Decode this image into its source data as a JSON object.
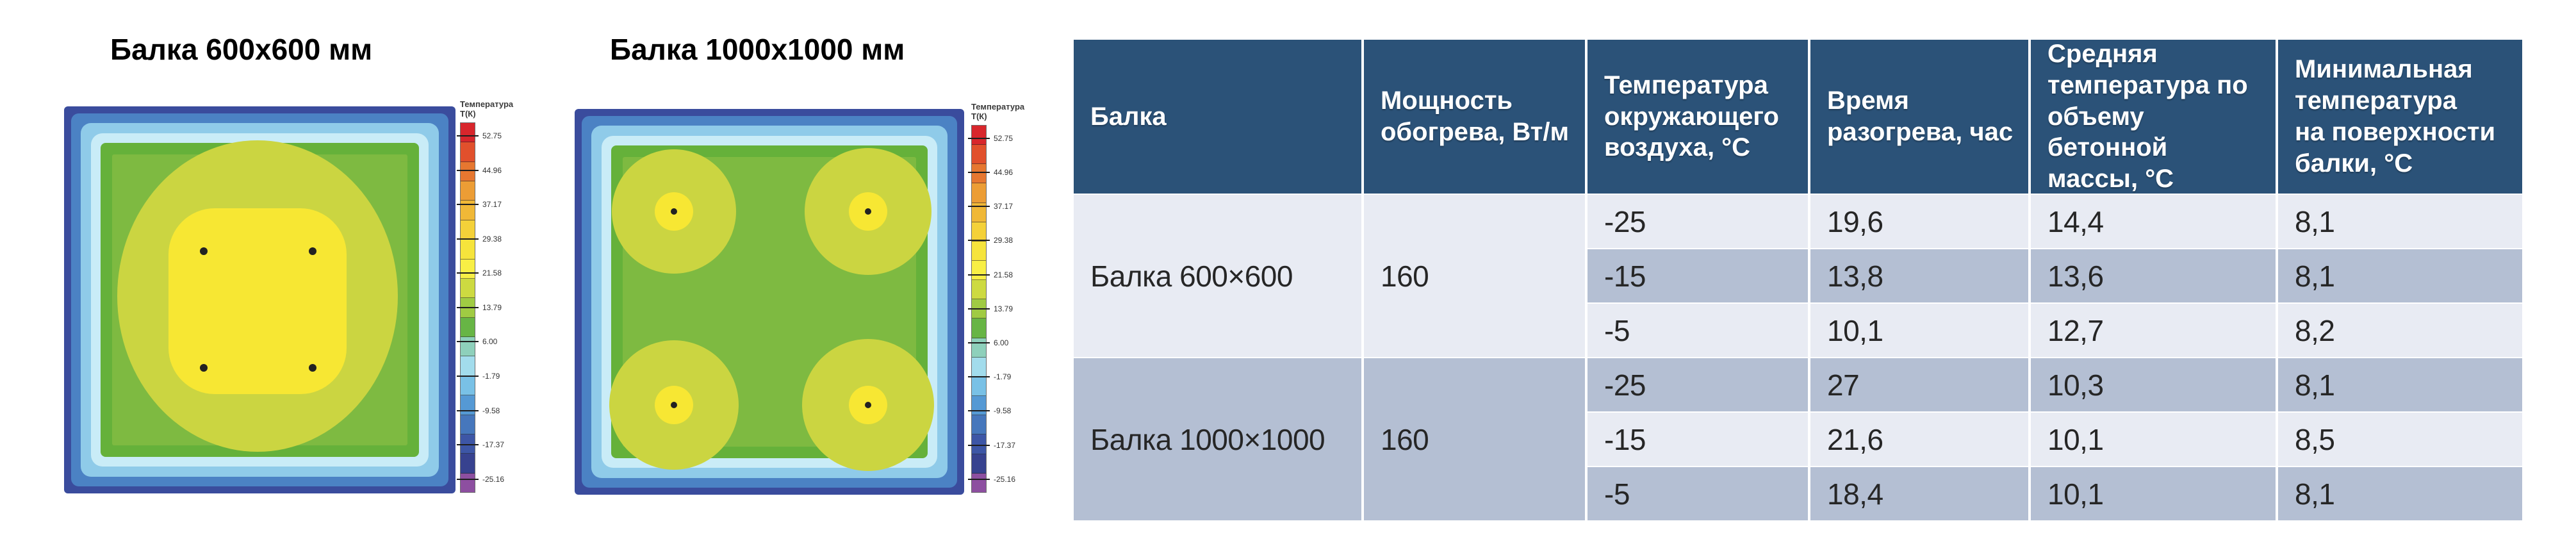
{
  "figures": [
    {
      "title": "Балка 600х600 мм"
    },
    {
      "title": "Балка 1000х1000 мм"
    }
  ],
  "colorbar": {
    "title_line1": "Температура",
    "title_line2": "Т(К)",
    "band_colors": [
      "#d8262c",
      "#e1502c",
      "#e67730",
      "#ec9d35",
      "#f0b837",
      "#f4d139",
      "#f6e43c",
      "#f8ef45",
      "#cdda41",
      "#a0cb43",
      "#67b545",
      "#8ed0bb",
      "#a2dcec",
      "#79c1e6",
      "#5599d4",
      "#4677bc",
      "#3d56a6",
      "#37428f",
      "#8d4fa0"
    ],
    "ticks": [
      "52.75",
      "44.96",
      "37.17",
      "29.38",
      "21.58",
      "13.79",
      "6.00",
      "-1.79",
      "-9.58",
      "-17.37",
      "-25.16"
    ]
  },
  "colors": {
    "header_bg": "#2b5278",
    "header_text": "#ffffff",
    "row_light": "#e8ebf3",
    "row_dark": "#b4bfd3",
    "body_text": "#262626",
    "plot_rings_outer_to_inner": [
      "#3a4c9d",
      "#4b82c4",
      "#8fcbe9",
      "#c9ecf7",
      "#65b13a",
      "#7eba41"
    ],
    "plot_blob_olive": "#cbd541",
    "plot_core_yellow": "#f7e733",
    "heater_dot": "#222222"
  },
  "table": {
    "columns": [
      "Балка",
      "Мощность\nобогрева, Вт/м",
      "Температура\nокружающего\nвоздуха, °С",
      "Время\nразогрева, час",
      "Средняя\nтемпература по\nобъему бетонной\nмассы, °С",
      "Минимальная\nтемпература\nна поверхности\nбалки, °С"
    ],
    "groups": [
      {
        "beam": "Балка 600×600",
        "power": "160",
        "rows": [
          [
            "-25",
            "19,6",
            "14,4",
            "8,1"
          ],
          [
            "-15",
            "13,8",
            "13,6",
            "8,1"
          ],
          [
            "-5",
            "10,1",
            "12,7",
            "8,2"
          ]
        ]
      },
      {
        "beam": "Балка 1000×1000",
        "power": "160",
        "rows": [
          [
            "-25",
            "27",
            "10,3",
            "8,1"
          ],
          [
            "-15",
            "21,6",
            "10,1",
            "8,5"
          ],
          [
            "-5",
            "18,4",
            "10,1",
            "8,1"
          ]
        ]
      }
    ]
  },
  "chart_data": [
    {
      "type": "heatmap",
      "title": "Балка 600х600 мм",
      "legend_title": "Температура Т(К)",
      "colorbar_ticks": [
        52.75,
        44.96,
        37.17,
        29.38,
        21.58,
        13.79,
        6.0,
        -1.79,
        -9.58,
        -17.37,
        -25.16
      ],
      "palette": "rainbow: red (hot) at top to purple (cold) at bottom",
      "description": "Temperature field of 600×600 mm beam cross-section: single warm yellow core (~20-30 °C) around 4 heating wires, olive-yellow transition blob, green mid zone (~6-14 °C), pale-cyan/blue/dark-indigo cold edge layers down to about -25 °C at the surface."
    },
    {
      "type": "heatmap",
      "title": "Балка 1000х1000 мм",
      "legend_title": "Температура Т(К)",
      "colorbar_ticks": [
        52.75,
        44.96,
        37.17,
        29.38,
        21.58,
        13.79,
        6.0,
        -1.79,
        -9.58,
        -17.37,
        -25.16
      ],
      "palette": "rainbow: red (hot) at top to purple (cold) at bottom",
      "description": "Temperature field of 1000×1000 mm beam cross-section: four separate warm olive-yellow zones, each with a small bright-yellow hot spot at a heating wire, on a green background, with cyan/blue/indigo cold boundary layers."
    },
    {
      "type": "table",
      "columns": [
        "Балка",
        "Мощность обогрева, Вт/м",
        "Температура окружающего воздуха, °С",
        "Время разогрева, час",
        "Средняя температура по объему бетонной массы, °С",
        "Минимальная температура на поверхности балки, °С"
      ],
      "rows": [
        [
          "Балка 600×600",
          "160",
          "-25",
          "19,6",
          "14,4",
          "8,1"
        ],
        [
          "Балка 600×600",
          "160",
          "-15",
          "13,8",
          "13,6",
          "8,1"
        ],
        [
          "Балка 600×600",
          "160",
          "-5",
          "10,1",
          "12,7",
          "8,2"
        ],
        [
          "Балка 1000×1000",
          "160",
          "-25",
          "27",
          "10,3",
          "8,1"
        ],
        [
          "Балка 1000×1000",
          "160",
          "-15",
          "21,6",
          "10,1",
          "8,5"
        ],
        [
          "Балка 1000×1000",
          "160",
          "-5",
          "18,4",
          "10,1",
          "8,1"
        ]
      ]
    }
  ]
}
